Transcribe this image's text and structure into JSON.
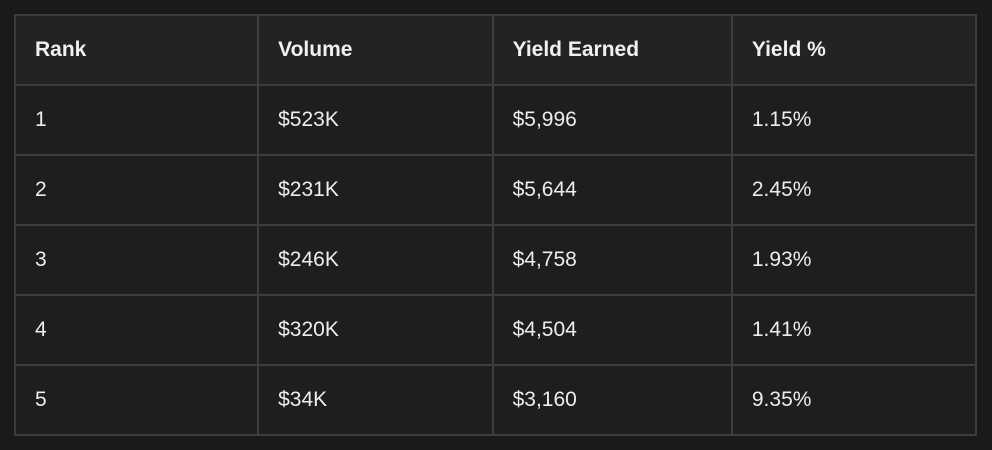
{
  "table": {
    "headers": [
      "Rank",
      "Volume",
      "Yield Earned",
      "Yield %"
    ],
    "rows": [
      [
        "1",
        "$523K",
        "$5,996",
        "1.15%"
      ],
      [
        "2",
        "$231K",
        "$5,644",
        "2.45%"
      ],
      [
        "3",
        "$246K",
        "$4,758",
        "1.93%"
      ],
      [
        "4",
        "$320K",
        "$4,504",
        "1.41%"
      ],
      [
        "5",
        "$34K",
        "$3,160",
        "9.35%"
      ]
    ]
  },
  "chart_data": {
    "type": "table",
    "columns": [
      "Rank",
      "Volume",
      "Yield Earned",
      "Yield %"
    ],
    "rows": [
      {
        "rank": 1,
        "volume": "$523K",
        "yield_earned": "$5,996",
        "yield_pct": "1.15%"
      },
      {
        "rank": 2,
        "volume": "$231K",
        "yield_earned": "$5,644",
        "yield_pct": "2.45%"
      },
      {
        "rank": 3,
        "volume": "$246K",
        "yield_earned": "$4,758",
        "yield_pct": "1.93%"
      },
      {
        "rank": 4,
        "volume": "$320K",
        "yield_earned": "$4,504",
        "yield_pct": "1.41%"
      },
      {
        "rank": 5,
        "volume": "$34K",
        "yield_earned": "$3,160",
        "yield_pct": "9.35%"
      }
    ]
  },
  "colors": {
    "page_background": "#1a1a1a",
    "header_cell_background": "#232323",
    "data_cell_background": "#1e1e1e",
    "grid_border": "#3d3d3d",
    "text": "#ededed"
  }
}
